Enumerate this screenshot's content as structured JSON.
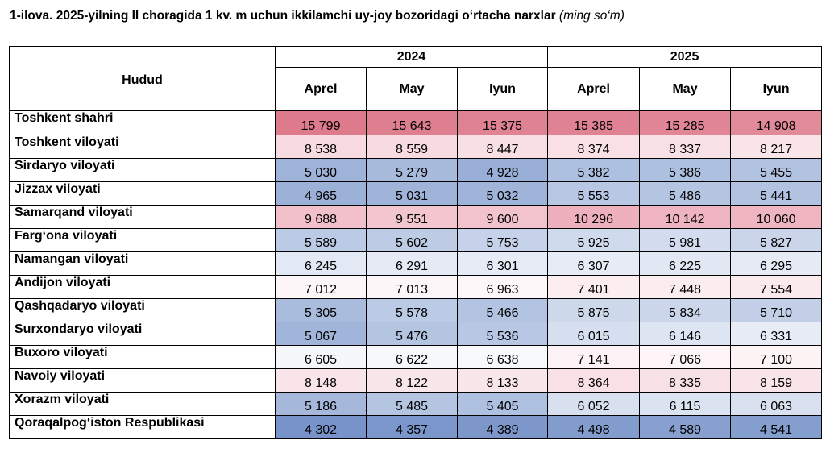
{
  "title": {
    "main": "1-ilova. 2025-yilning II choragida 1 kv. m uchun ikkilamchi uy-joy bozoridagi o‘rtacha narxlar",
    "unit": "(ming so‘m)"
  },
  "table": {
    "region_header": "Hudud",
    "years": [
      "2024",
      "2025"
    ],
    "months": [
      "Aprel",
      "May",
      "Iyun",
      "Aprel",
      "May",
      "Iyun"
    ],
    "rows": [
      {
        "region": "Toshkent shahri",
        "values": [
          "15 799",
          "15 643",
          "15 375",
          "15 385",
          "15 285",
          "14 908"
        ],
        "colors": [
          "#dd7a8c",
          "#de7f90",
          "#df8294",
          "#df8294",
          "#e08697",
          "#e18a9a"
        ]
      },
      {
        "region": "Toshkent viloyati",
        "values": [
          "8 538",
          "8 559",
          "8 447",
          "8 374",
          "8 337",
          "8 217"
        ],
        "colors": [
          "#f7dbe1",
          "#f7dbe1",
          "#f8dfe4",
          "#f8e0e5",
          "#f8e1e6",
          "#f9e4e8"
        ]
      },
      {
        "region": "Sirdaryo viloyati",
        "values": [
          "5 030",
          "5 279",
          "4 928",
          "5 382",
          "5 386",
          "5 455"
        ],
        "colors": [
          "#9fb3d9",
          "#a9bbdd",
          "#9aafd7",
          "#aec0e0",
          "#aec0e0",
          "#b2c3e1"
        ]
      },
      {
        "region": "Jizzax viloyati",
        "values": [
          "4 965",
          "5 031",
          "5 032",
          "5 553",
          "5 486",
          "5 441"
        ],
        "colors": [
          "#9cb1d8",
          "#a0b4d9",
          "#a0b4d9",
          "#b8c8e4",
          "#b4c5e2",
          "#b2c3e1"
        ]
      },
      {
        "region": "Samarqand viloyati",
        "values": [
          "9 688",
          "9 551",
          "9 600",
          "10 296",
          "10 142",
          "10 060"
        ],
        "colors": [
          "#f1c0cb",
          "#f2c5cf",
          "#f2c3cd",
          "#eeb0bd",
          "#efb4c1",
          "#efb6c2"
        ]
      },
      {
        "region": "Farg‘ona viloyati",
        "values": [
          "5 589",
          "5 602",
          "5 753",
          "5 925",
          "5 981",
          "5 827"
        ],
        "colors": [
          "#bccbe5",
          "#bdcbe5",
          "#c6d2e9",
          "#d0daed",
          "#d3dcee",
          "#cad5ea"
        ]
      },
      {
        "region": "Namangan viloyati",
        "values": [
          "6 245",
          "6 291",
          "6 301",
          "6 307",
          "6 225",
          "6 295"
        ],
        "colors": [
          "#e2e8f4",
          "#e5eaf5",
          "#e6ebf5",
          "#e6ebf5",
          "#e1e7f3",
          "#e5eaf5"
        ]
      },
      {
        "region": "Andijon viloyati",
        "values": [
          "7 012",
          "7 013",
          "6 963",
          "7 401",
          "7 448",
          "7 554"
        ],
        "colors": [
          "#fdf6f8",
          "#fdf6f8",
          "#fdf7f9",
          "#fbedf0",
          "#fbecef",
          "#fae9ed"
        ]
      },
      {
        "region": "Qashqadaryo viloyati",
        "values": [
          "5 305",
          "5 578",
          "5 466",
          "5 875",
          "5 834",
          "5 710"
        ],
        "colors": [
          "#aabcdd",
          "#bccbe5",
          "#b3c4e2",
          "#cdd8eb",
          "#cbd6ea",
          "#c3cfe7"
        ]
      },
      {
        "region": "Surxondaryo viloyati",
        "values": [
          "5 067",
          "5 476",
          "5 536",
          "6 015",
          "6 146",
          "6 331"
        ],
        "colors": [
          "#a1b5da",
          "#b4c5e2",
          "#b8c8e4",
          "#d6dff0",
          "#dde4f2",
          "#e7ecf6"
        ]
      },
      {
        "region": "Buxoro viloyati",
        "values": [
          "6 605",
          "6 622",
          "6 638",
          "7 141",
          "7 066",
          "7 100"
        ],
        "colors": [
          "#f5f7fb",
          "#f6f8fb",
          "#f7f9fc",
          "#fdf3f6",
          "#fdf5f7",
          "#fdf4f6"
        ]
      },
      {
        "region": "Navoiy viloyati",
        "values": [
          "8 148",
          "8 122",
          "8 133",
          "8 364",
          "8 335",
          "8 159"
        ],
        "colors": [
          "#f9e5e9",
          "#f9e6ea",
          "#f9e6ea",
          "#f8e0e5",
          "#f8e1e6",
          "#f9e5e9"
        ]
      },
      {
        "region": "Xorazm viloyati",
        "values": [
          "5 186",
          "5 485",
          "5 405",
          "6 052",
          "6 115",
          "6 063"
        ],
        "colors": [
          "#a5b8db",
          "#b4c5e2",
          "#afc1e0",
          "#d8e0f0",
          "#dbe3f1",
          "#d9e1f0"
        ]
      },
      {
        "region": "Qoraqalpog‘iston Respublikasi",
        "values": [
          "4 302",
          "4 357",
          "4 389",
          "4 498",
          "4 589",
          "4 541"
        ],
        "colors": [
          "#7893c9",
          "#7b96ca",
          "#7d97cb",
          "#829ccd",
          "#87a0cf",
          "#849ece"
        ]
      }
    ]
  }
}
